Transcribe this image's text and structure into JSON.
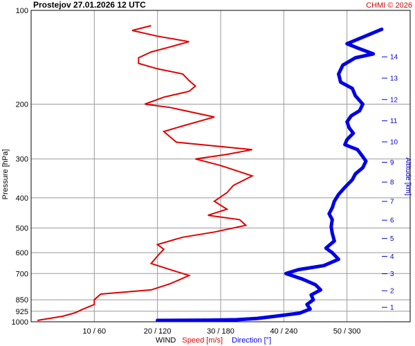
{
  "title": "Prostejov    27.01.2026 12 UTC",
  "credit": "CHMI © 2026",
  "y_axis_label": "Pressure [hPa]",
  "right_axis_label": "Altitude [km]",
  "x_axis_label_prefix": "WIND",
  "x_axis_label_speed": "Speed [m/s]",
  "x_axis_label_direction": "Direction [°]",
  "colors": {
    "speed": "#e00000",
    "direction": "#0000e6",
    "grid": "#999999",
    "axis": "#000000"
  },
  "chart_data": {
    "type": "line",
    "title": "Prostejov    27.01.2026 12 UTC",
    "xlabel": "WIND  Speed [m/s]  Direction [°]",
    "ylabel": "Pressure [hPa]",
    "y_scale": "log",
    "y_inverted": true,
    "ylim": [
      1000,
      100
    ],
    "speed_xlim": [
      0,
      60
    ],
    "direction_xlim": [
      0,
      360
    ],
    "x_ticks": [
      "10 / 60",
      "20 / 120",
      "30 / 180",
      "40 / 240",
      "50 / 300"
    ],
    "x_tick_speed": [
      10,
      20,
      30,
      40,
      50
    ],
    "y_ticks": [
      100,
      200,
      300,
      400,
      500,
      600,
      700,
      850,
      925,
      1000
    ],
    "altitude_ticks_km": [
      1,
      2,
      3,
      4,
      5,
      6,
      7,
      8,
      9,
      10,
      11,
      12,
      13,
      14
    ],
    "grid": true,
    "series": [
      {
        "name": "Speed [m/s]",
        "points": [
          [
            1,
            990
          ],
          [
            5,
            960
          ],
          [
            7,
            935
          ],
          [
            8,
            915
          ],
          [
            10,
            880
          ],
          [
            10,
            850
          ],
          [
            11,
            815
          ],
          [
            19,
            790
          ],
          [
            22,
            755
          ],
          [
            24,
            725
          ],
          [
            25,
            710
          ],
          [
            22,
            680
          ],
          [
            19,
            650
          ],
          [
            20,
            615
          ],
          [
            21,
            585
          ],
          [
            20,
            565
          ],
          [
            24,
            535
          ],
          [
            29,
            515
          ],
          [
            34,
            490
          ],
          [
            33,
            470
          ],
          [
            28,
            455
          ],
          [
            31,
            435
          ],
          [
            29,
            410
          ],
          [
            31,
            385
          ],
          [
            32,
            365
          ],
          [
            35,
            340
          ],
          [
            30,
            315
          ],
          [
            26,
            300
          ],
          [
            31,
            290
          ],
          [
            35,
            280
          ],
          [
            23,
            265
          ],
          [
            21,
            245
          ],
          [
            24,
            235
          ],
          [
            29,
            220
          ],
          [
            22,
            205
          ],
          [
            18,
            200
          ],
          [
            21,
            190
          ],
          [
            25,
            182
          ],
          [
            26,
            175
          ],
          [
            25,
            168
          ],
          [
            24,
            160
          ],
          [
            20,
            154
          ],
          [
            17,
            148
          ],
          [
            17,
            142
          ],
          [
            19,
            136
          ],
          [
            22,
            131
          ],
          [
            25,
            126
          ],
          [
            20,
            121
          ],
          [
            16,
            116
          ],
          [
            19,
            112
          ]
        ]
      },
      {
        "name": "Direction [°]",
        "points": [
          [
            120,
            990
          ],
          [
            170,
            988
          ],
          [
            195,
            985
          ],
          [
            215,
            975
          ],
          [
            232,
            960
          ],
          [
            255,
            938
          ],
          [
            265,
            910
          ],
          [
            262,
            880
          ],
          [
            268,
            850
          ],
          [
            266,
            820
          ],
          [
            275,
            790
          ],
          [
            270,
            760
          ],
          [
            258,
            730
          ],
          [
            242,
            700
          ],
          [
            254,
            680
          ],
          [
            278,
            660
          ],
          [
            292,
            630
          ],
          [
            286,
            600
          ],
          [
            280,
            580
          ],
          [
            288,
            550
          ],
          [
            286,
            520
          ],
          [
            285,
            495
          ],
          [
            286,
            470
          ],
          [
            283,
            450
          ],
          [
            286,
            430
          ],
          [
            288,
            410
          ],
          [
            292,
            390
          ],
          [
            298,
            370
          ],
          [
            305,
            350
          ],
          [
            308,
            335
          ],
          [
            315,
            320
          ],
          [
            318,
            305
          ],
          [
            315,
            295
          ],
          [
            310,
            280
          ],
          [
            298,
            270
          ],
          [
            300,
            260
          ],
          [
            306,
            248
          ],
          [
            302,
            238
          ],
          [
            300,
            228
          ],
          [
            304,
            218
          ],
          [
            312,
            210
          ],
          [
            315,
            200
          ],
          [
            308,
            188
          ],
          [
            305,
            178
          ],
          [
            294,
            170
          ],
          [
            292,
            160
          ],
          [
            296,
            150
          ],
          [
            308,
            142
          ],
          [
            325,
            138
          ],
          [
            310,
            132
          ],
          [
            300,
            128
          ],
          [
            320,
            120
          ],
          [
            333,
            115
          ]
        ]
      }
    ]
  }
}
